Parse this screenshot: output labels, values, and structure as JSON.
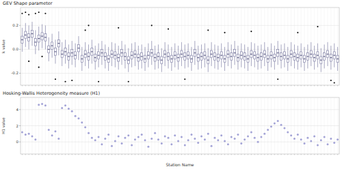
{
  "chart_data": [
    {
      "type": "box",
      "title": "GEV Shape parameter",
      "y_label": "k value",
      "categories": [
        null,
        null,
        null,
        null,
        null,
        null,
        null,
        null,
        null,
        null,
        null,
        null,
        null,
        null,
        null,
        null,
        null,
        null,
        null,
        null,
        null,
        null,
        null,
        null,
        null,
        null,
        null,
        null,
        null,
        null,
        null,
        null,
        null,
        null,
        null,
        null,
        null,
        null,
        null,
        null,
        null,
        null,
        null,
        null,
        null,
        null,
        null,
        null,
        null,
        null,
        null,
        null,
        null,
        null,
        null,
        null,
        null,
        null,
        null,
        null,
        null,
        null,
        null,
        null,
        null,
        null,
        null,
        null,
        null,
        null,
        null,
        null,
        null,
        null,
        null,
        null,
        null,
        null,
        null,
        null,
        null,
        null,
        null,
        null,
        null,
        null,
        null,
        null,
        null,
        null,
        null,
        null,
        null,
        null,
        null,
        null
      ],
      "whisker_low": [
        -0.02,
        0.02,
        0.0,
        0.03,
        -0.04,
        -0.01,
        0.01,
        0.0,
        -0.1,
        -0.07,
        -0.12,
        -0.05,
        -0.14,
        -0.12,
        -0.16,
        -0.13,
        -0.15,
        -0.09,
        -0.18,
        -0.14,
        -0.16,
        -0.12,
        -0.17,
        -0.15,
        -0.13,
        -0.16,
        -0.18,
        -0.14,
        -0.15,
        -0.17,
        -0.13,
        -0.16,
        -0.19,
        -0.15,
        -0.14,
        -0.17,
        -0.16,
        -0.18,
        -0.15,
        -0.13,
        -0.17,
        -0.16,
        -0.19,
        -0.14,
        -0.16,
        -0.18,
        -0.15,
        -0.17,
        -0.14,
        -0.16,
        -0.15,
        -0.18,
        -0.13,
        -0.17,
        -0.16,
        -0.15,
        -0.19,
        -0.14,
        -0.16,
        -0.17,
        -0.15,
        -0.18,
        -0.14,
        -0.16,
        -0.13,
        -0.17,
        -0.15,
        -0.16,
        -0.18,
        -0.14,
        -0.15,
        -0.17,
        -0.16,
        -0.14,
        -0.18,
        -0.15,
        -0.17,
        -0.13,
        -0.16,
        -0.15,
        -0.18,
        -0.14,
        -0.16,
        -0.17,
        -0.15,
        -0.18,
        -0.16,
        -0.14,
        -0.17,
        -0.15,
        -0.19,
        -0.16,
        -0.14,
        -0.17,
        -0.15,
        -0.18
      ],
      "q1": [
        0.05,
        0.09,
        0.07,
        0.1,
        0.03,
        0.06,
        0.08,
        0.07,
        -0.03,
        0.0,
        -0.05,
        0.02,
        -0.07,
        -0.05,
        -0.09,
        -0.06,
        -0.08,
        -0.02,
        -0.11,
        -0.07,
        -0.09,
        -0.05,
        -0.1,
        -0.08,
        -0.06,
        -0.09,
        -0.11,
        -0.07,
        -0.08,
        -0.1,
        -0.06,
        -0.09,
        -0.12,
        -0.08,
        -0.07,
        -0.1,
        -0.09,
        -0.11,
        -0.08,
        -0.06,
        -0.1,
        -0.09,
        -0.12,
        -0.07,
        -0.09,
        -0.11,
        -0.08,
        -0.1,
        -0.07,
        -0.09,
        -0.08,
        -0.11,
        -0.06,
        -0.1,
        -0.09,
        -0.08,
        -0.12,
        -0.07,
        -0.09,
        -0.1,
        -0.08,
        -0.11,
        -0.07,
        -0.09,
        -0.06,
        -0.1,
        -0.08,
        -0.09,
        -0.11,
        -0.07,
        -0.08,
        -0.1,
        -0.09,
        -0.07,
        -0.11,
        -0.08,
        -0.1,
        -0.06,
        -0.09,
        -0.08,
        -0.11,
        -0.07,
        -0.09,
        -0.1,
        -0.08,
        -0.11,
        -0.09,
        -0.07,
        -0.1,
        -0.08,
        -0.12,
        -0.09,
        -0.07,
        -0.1,
        -0.08,
        -0.11
      ],
      "median": [
        0.08,
        0.12,
        0.1,
        0.13,
        0.06,
        0.09,
        0.11,
        0.1,
        0.0,
        0.03,
        -0.02,
        0.05,
        -0.04,
        -0.02,
        -0.06,
        -0.03,
        -0.05,
        0.01,
        -0.08,
        -0.04,
        -0.06,
        -0.02,
        -0.07,
        -0.05,
        -0.03,
        -0.06,
        -0.08,
        -0.04,
        -0.05,
        -0.07,
        -0.03,
        -0.06,
        -0.09,
        -0.05,
        -0.04,
        -0.07,
        -0.06,
        -0.08,
        -0.05,
        -0.03,
        -0.07,
        -0.06,
        -0.09,
        -0.04,
        -0.06,
        -0.08,
        -0.05,
        -0.07,
        -0.04,
        -0.06,
        -0.05,
        -0.08,
        -0.03,
        -0.07,
        -0.06,
        -0.05,
        -0.09,
        -0.04,
        -0.06,
        -0.07,
        -0.05,
        -0.08,
        -0.04,
        -0.06,
        -0.03,
        -0.07,
        -0.05,
        -0.06,
        -0.08,
        -0.04,
        -0.05,
        -0.07,
        -0.06,
        -0.04,
        -0.08,
        -0.05,
        -0.07,
        -0.03,
        -0.06,
        -0.05,
        -0.08,
        -0.04,
        -0.06,
        -0.07,
        -0.05,
        -0.08,
        -0.06,
        -0.04,
        -0.07,
        -0.05,
        -0.09,
        -0.06,
        -0.04,
        -0.07,
        -0.05,
        -0.08
      ],
      "q3": [
        0.11,
        0.15,
        0.13,
        0.16,
        0.09,
        0.12,
        0.14,
        0.13,
        0.03,
        0.06,
        0.01,
        0.08,
        -0.01,
        0.01,
        -0.03,
        0.0,
        -0.02,
        0.04,
        -0.05,
        -0.01,
        -0.03,
        0.01,
        -0.04,
        -0.02,
        0.0,
        -0.03,
        -0.05,
        -0.01,
        -0.02,
        -0.04,
        0.0,
        -0.03,
        -0.06,
        -0.02,
        -0.01,
        -0.04,
        -0.03,
        -0.05,
        -0.02,
        0.0,
        -0.04,
        -0.03,
        -0.06,
        -0.01,
        -0.03,
        -0.05,
        -0.02,
        -0.04,
        -0.01,
        -0.03,
        -0.02,
        -0.05,
        0.0,
        -0.04,
        -0.03,
        -0.02,
        -0.06,
        -0.01,
        -0.03,
        -0.04,
        -0.02,
        -0.05,
        -0.01,
        -0.03,
        0.0,
        -0.04,
        -0.02,
        -0.03,
        -0.05,
        -0.01,
        -0.02,
        -0.04,
        -0.03,
        -0.01,
        -0.05,
        -0.02,
        -0.04,
        0.0,
        -0.03,
        -0.02,
        -0.05,
        -0.01,
        -0.03,
        -0.04,
        -0.02,
        -0.05,
        -0.03,
        -0.01,
        -0.04,
        -0.02,
        -0.06,
        -0.03,
        -0.01,
        -0.04,
        -0.02,
        -0.05
      ],
      "whisker_high": [
        0.18,
        0.22,
        0.2,
        0.23,
        0.16,
        0.19,
        0.21,
        0.2,
        0.1,
        0.13,
        0.08,
        0.15,
        0.06,
        0.08,
        0.04,
        0.07,
        0.05,
        0.11,
        0.02,
        0.06,
        0.04,
        0.08,
        0.03,
        0.05,
        0.07,
        0.04,
        0.02,
        0.06,
        0.05,
        0.03,
        0.07,
        0.04,
        0.01,
        0.05,
        0.06,
        0.03,
        0.04,
        0.02,
        0.05,
        0.07,
        0.03,
        0.04,
        0.01,
        0.06,
        0.04,
        0.02,
        0.05,
        0.03,
        0.06,
        0.04,
        0.05,
        0.02,
        0.07,
        0.03,
        0.04,
        0.05,
        0.01,
        0.06,
        0.04,
        0.03,
        0.05,
        0.02,
        0.06,
        0.04,
        0.07,
        0.03,
        0.05,
        0.04,
        0.02,
        0.06,
        0.05,
        0.03,
        0.04,
        0.06,
        0.02,
        0.05,
        0.03,
        0.07,
        0.04,
        0.05,
        0.02,
        0.06,
        0.04,
        0.03,
        0.05,
        0.02,
        0.04,
        0.06,
        0.03,
        0.05,
        0.01,
        0.04,
        0.06,
        0.03,
        0.05,
        0.02
      ],
      "outliers": [
        [
          0.3
        ],
        [
          0.31
        ],
        [
          0.29,
          -0.1
        ],
        [],
        [
          0.3
        ],
        [
          0.31,
          -0.15
        ],
        [
          -0.06
        ],
        [
          0.3
        ],
        [],
        [],
        [
          -0.25
        ],
        [],
        [],
        [
          -0.27
        ],
        [],
        [
          -0.26
        ],
        [],
        [],
        [],
        [
          0.16
        ],
        [
          0.2
        ],
        [],
        [],
        [
          -0.27
        ],
        [],
        [],
        [],
        [],
        [],
        [
          0.18
        ],
        [],
        [],
        [
          -0.27
        ],
        [],
        [],
        [],
        [],
        [],
        [],
        [
          0.2
        ],
        [],
        [],
        [],
        [],
        [
          0.17
        ],
        [],
        [],
        [],
        [],
        [
          -0.25
        ],
        [],
        [],
        [],
        [],
        [],
        [],
        [
          0.16
        ],
        [],
        [],
        [],
        [],
        [
          0.14
        ],
        [],
        [],
        [],
        [],
        [],
        [],
        [],
        [
          0.15
        ],
        [],
        [],
        [],
        [],
        [],
        [],
        [],
        [
          -0.25
        ],
        [],
        [],
        [],
        [],
        [],
        [
          0.14
        ],
        [],
        [],
        [],
        [],
        [],
        [
          0.19
        ],
        [],
        [],
        [],
        [
          -0.26
        ],
        [
          -0.28
        ],
        []
      ],
      "ylim": [
        -0.3,
        0.35
      ],
      "yticks": [
        -0.2,
        {
          "value": 0,
          "label": "0.0"
        },
        0.2
      ],
      "grid": true,
      "color": "#6f6f9a"
    },
    {
      "type": "scatter",
      "title": "Hosking-Wallis Heterogeneity measure (H1)",
      "y_label": "H1 value",
      "x_label": "Station Name",
      "categories": [
        null,
        null,
        null,
        null,
        null,
        null,
        null,
        null,
        null,
        null,
        null,
        null,
        null,
        null,
        null,
        null,
        null,
        null,
        null,
        null,
        null,
        null,
        null,
        null,
        null,
        null,
        null,
        null,
        null,
        null,
        null,
        null,
        null,
        null,
        null,
        null,
        null,
        null,
        null,
        null,
        null,
        null,
        null,
        null,
        null,
        null,
        null,
        null,
        null,
        null,
        null,
        null,
        null,
        null,
        null,
        null,
        null,
        null,
        null,
        null,
        null,
        null,
        null,
        null,
        null,
        null,
        null,
        null,
        null,
        null,
        null,
        null,
        null,
        null,
        null,
        null,
        null,
        null,
        null,
        null,
        null,
        null,
        null,
        null,
        null,
        null,
        null,
        null,
        null,
        null,
        null,
        null,
        null,
        null,
        null,
        null
      ],
      "values": [
        1.2,
        0.9,
        1.0,
        0.7,
        0.3,
        4.6,
        4.7,
        4.5,
        1.5,
        0.8,
        1.3,
        0.4,
        4.2,
        4.5,
        4.1,
        3.8,
        3.2,
        2.9,
        2.4,
        1.8,
        1.1,
        0.5,
        0.2,
        0.6,
        -0.3,
        0.4,
        0.9,
        -0.5,
        0.1,
        0.7,
        -0.2,
        0.5,
        0.8,
        -0.4,
        0.3,
        0.6,
        0.9,
        0.2,
        -0.6,
        0.4,
        1.1,
        0.3,
        -0.2,
        0.7,
        0.5,
        -0.3,
        0.8,
        0.1,
        0.6,
        -0.4,
        0.2,
        0.9,
        0.4,
        -0.1,
        0.7,
        0.3,
        1.0,
        -0.5,
        0.5,
        0.2,
        0.8,
        0.1,
        -0.3,
        0.6,
        0.4,
        0.9,
        -0.2,
        0.3,
        0.7,
        1.2,
        0.5,
        0.0,
        0.6,
        1.0,
        1.5,
        1.9,
        2.3,
        2.6,
        2.1,
        1.7,
        1.2,
        0.8,
        0.4,
        0.9,
        0.3,
        -0.2,
        0.5,
        0.1,
        0.7,
        -0.4,
        0.2,
        0.6,
        -0.3,
        0.4,
        -0.1,
        0.3
      ],
      "ylim": [
        -1.5,
        5.5
      ],
      "yticks": [
        0,
        2,
        4
      ],
      "grid": true,
      "color": "#a3a3d6",
      "marker": "circle"
    }
  ]
}
